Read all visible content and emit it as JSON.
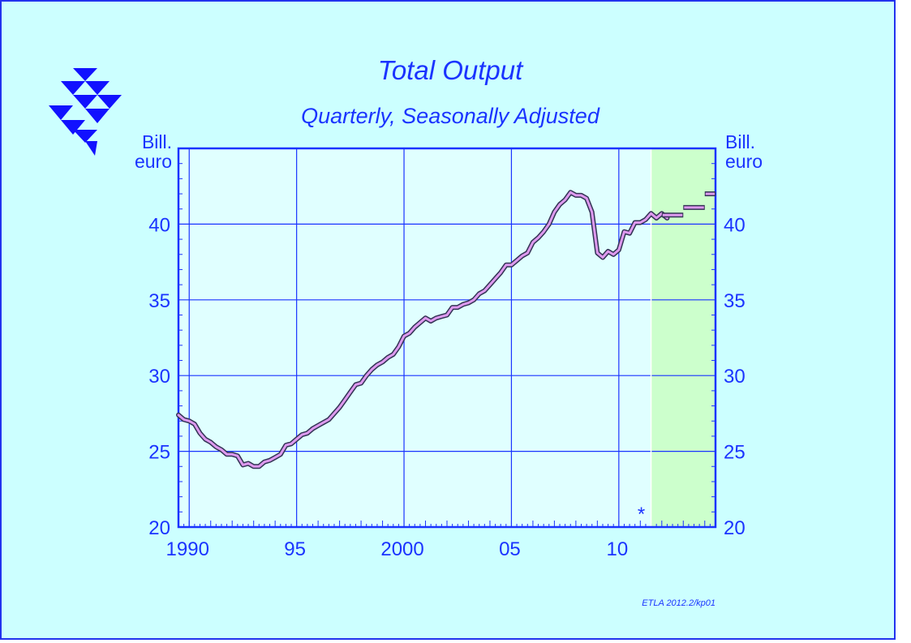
{
  "title": "Total Output",
  "subtitle": "Quarterly, Seasonally Adjusted",
  "unit_left": "Bill.\neuro",
  "unit_right": "Bill.\neuro",
  "credit": "ETLA 2012.2/kp01",
  "forecast_marker": "*",
  "colors": {
    "background": "#ccffff",
    "plot_background": "#e0ffff",
    "forecast_background": "#ccffcc",
    "axis": "#1a33ff",
    "series_fill": "#dd99ee",
    "series_outline": "#333355"
  },
  "chart_data": {
    "type": "line",
    "title": "Total Output",
    "subtitle": "Quarterly, Seasonally Adjusted",
    "ylabel": "Bill. euro",
    "xlabel": "",
    "xlim": [
      1989.5,
      2014.5
    ],
    "ylim": [
      20,
      45
    ],
    "x_ticks": [
      {
        "x": 1990,
        "label": "1990"
      },
      {
        "x": 1995,
        "label": "95"
      },
      {
        "x": 2000,
        "label": "2000"
      },
      {
        "x": 2005,
        "label": "05"
      },
      {
        "x": 2010,
        "label": "10"
      }
    ],
    "y_ticks": [
      20,
      25,
      30,
      35,
      40
    ],
    "grid": true,
    "forecast_start": 2011.5,
    "series": [
      {
        "points": [
          [
            1989.5,
            27.4
          ],
          [
            1989.75,
            27.1
          ],
          [
            1990.0,
            27.0
          ],
          [
            1990.25,
            26.8
          ],
          [
            1990.5,
            26.2
          ],
          [
            1990.75,
            25.8
          ],
          [
            1991.0,
            25.6
          ],
          [
            1991.25,
            25.3
          ],
          [
            1991.5,
            25.1
          ],
          [
            1991.75,
            24.8
          ],
          [
            1992.0,
            24.8
          ],
          [
            1992.25,
            24.7
          ],
          [
            1992.5,
            24.1
          ],
          [
            1992.75,
            24.2
          ],
          [
            1993.0,
            24.0
          ],
          [
            1993.25,
            24.0
          ],
          [
            1993.5,
            24.3
          ],
          [
            1993.75,
            24.4
          ],
          [
            1994.0,
            24.6
          ],
          [
            1994.25,
            24.8
          ],
          [
            1994.5,
            25.4
          ],
          [
            1994.75,
            25.5
          ],
          [
            1995.0,
            25.8
          ],
          [
            1995.25,
            26.1
          ],
          [
            1995.5,
            26.2
          ],
          [
            1995.75,
            26.5
          ],
          [
            1996.0,
            26.7
          ],
          [
            1996.25,
            26.9
          ],
          [
            1996.5,
            27.1
          ],
          [
            1996.75,
            27.5
          ],
          [
            1997.0,
            27.9
          ],
          [
            1997.25,
            28.4
          ],
          [
            1997.5,
            28.9
          ],
          [
            1997.75,
            29.4
          ],
          [
            1998.0,
            29.5
          ],
          [
            1998.25,
            30.0
          ],
          [
            1998.5,
            30.4
          ],
          [
            1998.75,
            30.7
          ],
          [
            1999.0,
            30.9
          ],
          [
            1999.25,
            31.2
          ],
          [
            1999.5,
            31.4
          ],
          [
            1999.75,
            31.9
          ],
          [
            2000.0,
            32.6
          ],
          [
            2000.25,
            32.8
          ],
          [
            2000.5,
            33.2
          ],
          [
            2000.75,
            33.5
          ],
          [
            2001.0,
            33.8
          ],
          [
            2001.25,
            33.6
          ],
          [
            2001.5,
            33.8
          ],
          [
            2001.75,
            33.9
          ],
          [
            2002.0,
            34.0
          ],
          [
            2002.25,
            34.5
          ],
          [
            2002.5,
            34.5
          ],
          [
            2002.75,
            34.7
          ],
          [
            2003.0,
            34.8
          ],
          [
            2003.25,
            35.0
          ],
          [
            2003.5,
            35.4
          ],
          [
            2003.75,
            35.6
          ],
          [
            2004.0,
            36.0
          ],
          [
            2004.25,
            36.4
          ],
          [
            2004.5,
            36.8
          ],
          [
            2004.75,
            37.3
          ],
          [
            2005.0,
            37.3
          ],
          [
            2005.25,
            37.6
          ],
          [
            2005.5,
            37.9
          ],
          [
            2005.75,
            38.1
          ],
          [
            2006.0,
            38.8
          ],
          [
            2006.25,
            39.1
          ],
          [
            2006.5,
            39.5
          ],
          [
            2006.75,
            40.0
          ],
          [
            2007.0,
            40.8
          ],
          [
            2007.25,
            41.3
          ],
          [
            2007.5,
            41.6
          ],
          [
            2007.75,
            42.1
          ],
          [
            2008.0,
            41.9
          ],
          [
            2008.25,
            41.9
          ],
          [
            2008.5,
            41.7
          ],
          [
            2008.75,
            40.8
          ],
          [
            2009.0,
            38.1
          ],
          [
            2009.25,
            37.8
          ],
          [
            2009.5,
            38.2
          ],
          [
            2009.75,
            38.0
          ],
          [
            2010.0,
            38.3
          ],
          [
            2010.25,
            39.5
          ],
          [
            2010.5,
            39.4
          ],
          [
            2010.75,
            40.1
          ],
          [
            2011.0,
            40.1
          ],
          [
            2011.25,
            40.3
          ],
          [
            2011.5,
            40.7
          ],
          [
            2011.75,
            40.4
          ],
          [
            2012.0,
            40.7
          ],
          [
            2012.25,
            40.4
          ]
        ]
      }
    ],
    "forecast_steps": [
      {
        "x_start": 2012.0,
        "x_end": 2013.0,
        "y": 40.6
      },
      {
        "x_start": 2013.0,
        "x_end": 2014.0,
        "y": 41.1
      },
      {
        "x_start": 2014.0,
        "x_end": 2014.5,
        "y": 42.0
      }
    ]
  }
}
